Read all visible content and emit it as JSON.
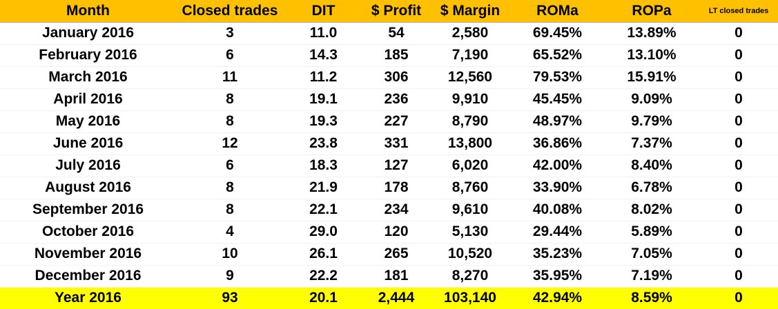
{
  "table": {
    "headers": {
      "month": "Month",
      "closed_trades": "Closed trades",
      "dit": "DIT",
      "profit": "$ Profit",
      "margin": "$ Margin",
      "roma": "ROMa",
      "ropa": "ROPa",
      "lt_closed_trades": "LT closed trades"
    },
    "rows": [
      {
        "month": "January 2016",
        "closed_trades": "3",
        "dit": "11.0",
        "profit": "54",
        "margin": "2,580",
        "roma": "69.45%",
        "ropa": "13.89%",
        "lt_closed_trades": "0"
      },
      {
        "month": "February 2016",
        "closed_trades": "6",
        "dit": "14.3",
        "profit": "185",
        "margin": "7,190",
        "roma": "65.52%",
        "ropa": "13.10%",
        "lt_closed_trades": "0"
      },
      {
        "month": "March 2016",
        "closed_trades": "11",
        "dit": "11.2",
        "profit": "306",
        "margin": "12,560",
        "roma": "79.53%",
        "ropa": "15.91%",
        "lt_closed_trades": "0"
      },
      {
        "month": "April 2016",
        "closed_trades": "8",
        "dit": "19.1",
        "profit": "236",
        "margin": "9,910",
        "roma": "45.45%",
        "ropa": "9.09%",
        "lt_closed_trades": "0"
      },
      {
        "month": "May 2016",
        "closed_trades": "8",
        "dit": "19.3",
        "profit": "227",
        "margin": "8,790",
        "roma": "48.97%",
        "ropa": "9.79%",
        "lt_closed_trades": "0"
      },
      {
        "month": "June 2016",
        "closed_trades": "12",
        "dit": "23.8",
        "profit": "331",
        "margin": "13,800",
        "roma": "36.86%",
        "ropa": "7.37%",
        "lt_closed_trades": "0"
      },
      {
        "month": "July 2016",
        "closed_trades": "6",
        "dit": "18.3",
        "profit": "127",
        "margin": "6,020",
        "roma": "42.00%",
        "ropa": "8.40%",
        "lt_closed_trades": "0"
      },
      {
        "month": "August 2016",
        "closed_trades": "8",
        "dit": "21.9",
        "profit": "178",
        "margin": "8,760",
        "roma": "33.90%",
        "ropa": "6.78%",
        "lt_closed_trades": "0"
      },
      {
        "month": "September 2016",
        "closed_trades": "8",
        "dit": "22.1",
        "profit": "234",
        "margin": "9,610",
        "roma": "40.08%",
        "ropa": "8.02%",
        "lt_closed_trades": "0"
      },
      {
        "month": "October 2016",
        "closed_trades": "4",
        "dit": "29.0",
        "profit": "120",
        "margin": "5,130",
        "roma": "29.44%",
        "ropa": "5.89%",
        "lt_closed_trades": "0"
      },
      {
        "month": "November 2016",
        "closed_trades": "10",
        "dit": "26.1",
        "profit": "265",
        "margin": "10,520",
        "roma": "35.23%",
        "ropa": "7.05%",
        "lt_closed_trades": "0"
      },
      {
        "month": "December 2016",
        "closed_trades": "9",
        "dit": "22.2",
        "profit": "181",
        "margin": "8,270",
        "roma": "35.95%",
        "ropa": "7.19%",
        "lt_closed_trades": "0"
      }
    ],
    "total": {
      "month": "Year 2016",
      "closed_trades": "93",
      "dit": "20.1",
      "profit": "2,444",
      "margin": "103,140",
      "roma": "42.94%",
      "ropa": "8.59%",
      "lt_closed_trades": "0"
    }
  },
  "colors": {
    "header_background": "#FFC000",
    "total_background": "#FFFF00"
  }
}
